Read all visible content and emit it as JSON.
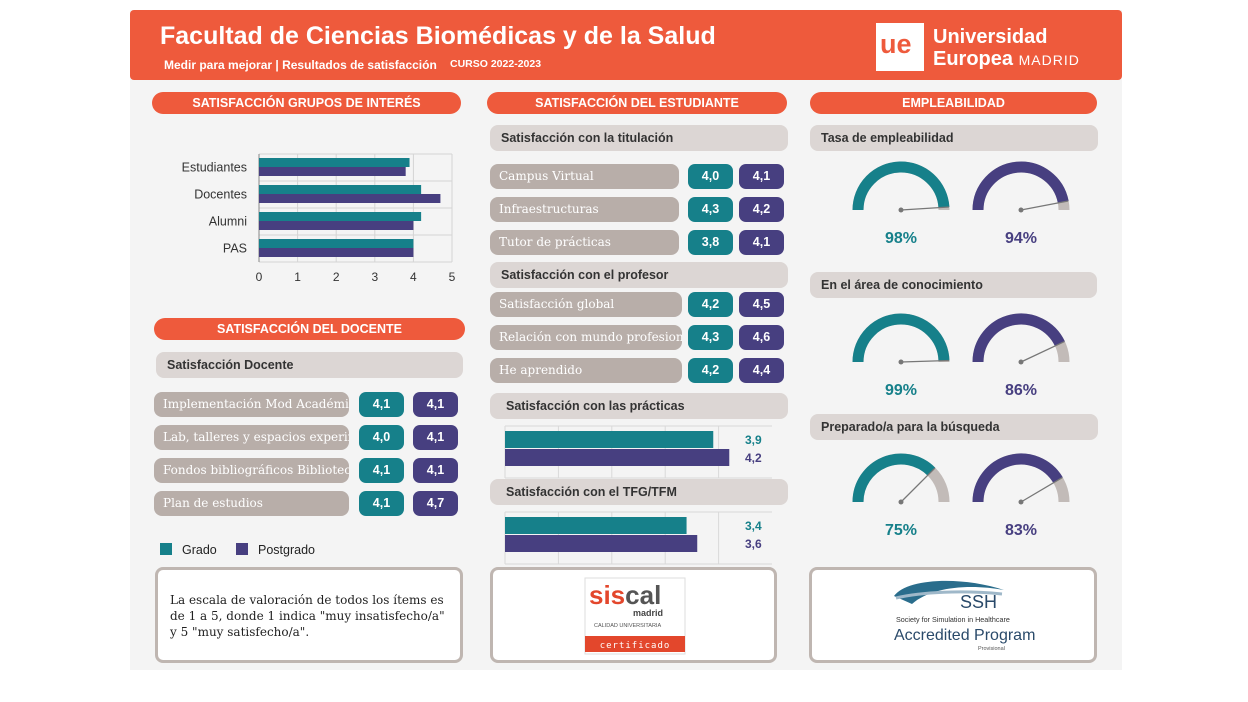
{
  "header": {
    "title": "Facultad de Ciencias Biomédicas y de la Salud",
    "subtitle": "Medir para mejorar | Resultados de satisfacción",
    "course": "CURSO 2022-2023",
    "logo_mark": "ue",
    "logo_line1": "Universidad",
    "logo_line2": "Europea",
    "logo_line3": "MADRID"
  },
  "colors": {
    "accent": "#ee5a3c",
    "grado": "#16808a",
    "postgrado": "#473f80",
    "grey_bar": "#dcd6d4",
    "item_bar": "#b8aea9",
    "gauge_rest": "#c2bbb8"
  },
  "sections": {
    "grupos": "SATISFACCIÓN GRUPOS DE INTERÉS",
    "docente": "SATISFACCIÓN DEL DOCENTE",
    "estudiante": "SATISFACCIÓN DEL ESTUDIANTE",
    "empleabilidad": "EMPLEABILIDAD"
  },
  "chart_data": [
    {
      "type": "bar",
      "orientation": "horizontal",
      "categories": [
        "Estudiantes",
        "Docentes",
        "Alumni",
        "PAS"
      ],
      "series": [
        {
          "name": "Grado",
          "values": [
            3.9,
            4.2,
            4.2,
            4.0
          ]
        },
        {
          "name": "Postgrado",
          "values": [
            3.8,
            4.7,
            4.0,
            4.0
          ]
        }
      ],
      "xlim": [
        0,
        5
      ],
      "ticks": [
        "0",
        "1",
        "2",
        "3",
        "4",
        "5"
      ],
      "grid": true
    },
    {
      "type": "bar",
      "orientation": "horizontal",
      "title": "Satisfacción con las prácticas",
      "series": [
        {
          "name": "Grado",
          "values": [
            3.9
          ],
          "label": "3,9"
        },
        {
          "name": "Postgrado",
          "values": [
            4.2
          ],
          "label": "4,2"
        }
      ],
      "xlim": [
        0,
        5
      ]
    },
    {
      "type": "bar",
      "orientation": "horizontal",
      "title": "Satisfacción con el TFG/TFM",
      "series": [
        {
          "name": "Grado",
          "values": [
            3.4
          ],
          "label": "3,4"
        },
        {
          "name": "Postgrado",
          "values": [
            3.6
          ],
          "label": "3,6"
        }
      ],
      "xlim": [
        0,
        5
      ]
    },
    {
      "type": "gauge",
      "groups": [
        {
          "title": "Tasa de empleabilidad",
          "grado": 98,
          "postgrado": 94,
          "grado_label": "98%",
          "postgrado_label": "94%"
        },
        {
          "title": "En el área de conocimiento",
          "grado": 99,
          "postgrado": 86,
          "grado_label": "99%",
          "postgrado_label": "86%"
        },
        {
          "title": "Preparado/a para la búsqueda",
          "grado": 75,
          "postgrado": 83,
          "grado_label": "75%",
          "postgrado_label": "83%"
        }
      ]
    }
  ],
  "docente": {
    "group_title": "Satisfacción Docente",
    "items": [
      {
        "label": "Implementación Mod Académico",
        "grado": "4,1",
        "postgrado": "4,1"
      },
      {
        "label": "Lab, talleres y espacios experim",
        "grado": "4,0",
        "postgrado": "4,1"
      },
      {
        "label": "Fondos bibliográficos Biblioteca",
        "grado": "4,1",
        "postgrado": "4,1"
      },
      {
        "label": "Plan de estudios",
        "grado": "4,1",
        "postgrado": "4,7"
      }
    ]
  },
  "legend": {
    "grado": "Grado",
    "postgrado": "Postgrado"
  },
  "note": "La escala de valoración de todos los ítems es de 1 a 5, donde 1 indica \"muy insatisfecho/a\" y 5 \"muy satisfecho/a\".",
  "estudiante": {
    "titulacion_title": "Satisfacción con la titulación",
    "titulacion": [
      {
        "label": "Campus Virtual",
        "grado": "4,0",
        "postgrado": "4,1"
      },
      {
        "label": "Infraestructuras",
        "grado": "4,3",
        "postgrado": "4,2"
      },
      {
        "label": "Tutor de prácticas",
        "grado": "3,8",
        "postgrado": "4,1"
      }
    ],
    "profesor_title": "Satisfacción con el profesor",
    "profesor": [
      {
        "label": "Satisfacción global",
        "grado": "4,2",
        "postgrado": "4,5"
      },
      {
        "label": "Relación con mundo profesional",
        "grado": "4,3",
        "postgrado": "4,6"
      },
      {
        "label": "He aprendido",
        "grado": "4,2",
        "postgrado": "4,4"
      }
    ]
  },
  "logos": {
    "siscal_main_a": "sis",
    "siscal_main_b": "cal",
    "siscal_madrid": "madrid",
    "siscal_sub": "CALIDAD UNIVERSITARIA",
    "siscal_cert": "certificado",
    "ssh_abbr": "SSH",
    "ssh_name": "Society for Simulation in Healthcare",
    "ssh_program": "Accredited Program",
    "ssh_status": "Provisional"
  }
}
